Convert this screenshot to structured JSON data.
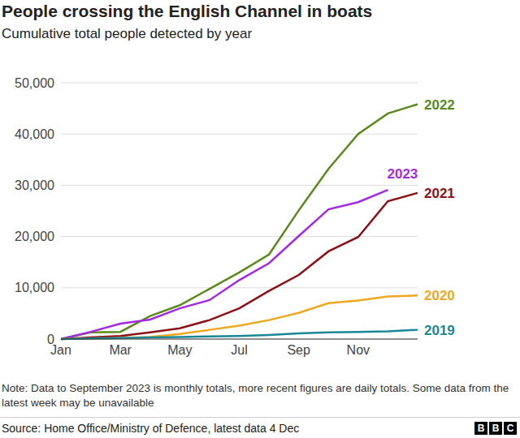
{
  "chart_data": {
    "type": "line",
    "title": "People crossing the English Channel in boats",
    "subtitle": "Cumulative total people detected by year",
    "note": "Note: Data to September 2023 is monthly totals, more recent figures are daily totals. Some data from the latest week may be unavailable",
    "source": "Source: Home Office/Ministry of Defence, latest data 4 Dec",
    "logo": "BBC",
    "categories": [
      "Jan",
      null,
      "Mar",
      null,
      "May",
      null,
      "Jul",
      null,
      "Sep",
      null,
      "Nov",
      null,
      null
    ],
    "series": [
      {
        "name": "2022",
        "color": "#5a8a1e",
        "values": [
          0,
          1300,
          1400,
          4500,
          6600,
          9800,
          13000,
          16500,
          25100,
          33200,
          40000,
          44000,
          45800
        ]
      },
      {
        "name": "2023",
        "color": "#a42ae0",
        "values": [
          0,
          1400,
          3000,
          3800,
          6000,
          7600,
          11500,
          14800,
          20100,
          25300,
          26700,
          29100,
          null
        ]
      },
      {
        "name": "2021",
        "color": "#8c1016",
        "values": [
          0,
          300,
          600,
          1300,
          2100,
          3700,
          6000,
          9400,
          12500,
          17100,
          19900,
          26900,
          28500
        ]
      },
      {
        "name": "2020",
        "color": "#eda81f",
        "values": [
          0,
          100,
          200,
          400,
          1000,
          1800,
          2600,
          3700,
          5100,
          7000,
          7500,
          8300,
          8500
        ]
      },
      {
        "name": "2019",
        "color": "#1a8796",
        "values": [
          0,
          100,
          200,
          300,
          400,
          500,
          600,
          800,
          1100,
          1300,
          1400,
          1500,
          1800
        ]
      }
    ],
    "ylim": [
      0,
      50000
    ],
    "yticks": [
      0,
      {
        "value": 10000,
        "label": "10,000"
      },
      {
        "value": 20000,
        "label": "20,000"
      },
      {
        "value": 30000,
        "label": "30,000"
      },
      {
        "value": 40000,
        "label": "40,000"
      },
      {
        "value": 50000,
        "label": "50,000"
      }
    ],
    "grid": true
  }
}
